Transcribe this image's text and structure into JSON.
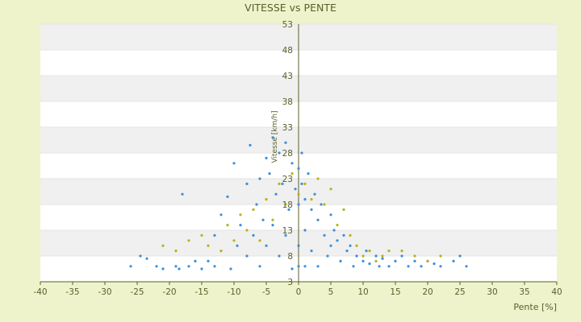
{
  "chart_data": {
    "type": "scatter",
    "title": "VITESSE vs PENTE",
    "xlabel": "Pente [%]",
    "ylabel": "Vitesse [km/h]",
    "xlim": [
      -40,
      40
    ],
    "ylim": [
      3,
      53
    ],
    "x_ticks": [
      -40,
      -35,
      -30,
      -25,
      -20,
      -15,
      -10,
      -5,
      0,
      5,
      10,
      15,
      20,
      25,
      30,
      35,
      40
    ],
    "y_ticks": [
      3,
      8,
      13,
      18,
      23,
      28,
      33,
      38,
      43,
      48,
      53
    ],
    "grid": "alternating horizontal bands",
    "colors": {
      "background": "#eef3cc",
      "band_light": "#ffffff",
      "band_dark": "#f0f0f0",
      "series_blue": "#3d8fd6",
      "series_yellow": "#b7b21a",
      "axis": "#5b5f2a",
      "text": "#5b5f2a"
    },
    "series": [
      {
        "color": "#3d8fd6",
        "points": [
          [
            -26,
            6
          ],
          [
            -23.5,
            7.5
          ],
          [
            -24.5,
            8
          ],
          [
            -22,
            6
          ],
          [
            -21,
            5.5
          ],
          [
            -19,
            6
          ],
          [
            -18.5,
            5.5
          ],
          [
            -18,
            20
          ],
          [
            -17,
            6
          ],
          [
            -16,
            7
          ],
          [
            -15,
            5.5
          ],
          [
            -14,
            7
          ],
          [
            -13,
            6
          ],
          [
            -13,
            12
          ],
          [
            -12,
            16
          ],
          [
            -11,
            19.5
          ],
          [
            -10.5,
            5.5
          ],
          [
            -10,
            26
          ],
          [
            -9.5,
            10
          ],
          [
            -9,
            14
          ],
          [
            -8,
            22
          ],
          [
            -8,
            8
          ],
          [
            -7.5,
            29.5
          ],
          [
            -7,
            12
          ],
          [
            -6.5,
            18
          ],
          [
            -6,
            23
          ],
          [
            -6,
            6
          ],
          [
            -5.5,
            15
          ],
          [
            -5,
            27
          ],
          [
            -5,
            10
          ],
          [
            -4.5,
            24
          ],
          [
            -4,
            31
          ],
          [
            -4,
            14
          ],
          [
            -3.5,
            20
          ],
          [
            -3,
            28
          ],
          [
            -3,
            8
          ],
          [
            -2.5,
            22
          ],
          [
            -2,
            30
          ],
          [
            -2,
            12
          ],
          [
            -1.5,
            17
          ],
          [
            -1,
            26
          ],
          [
            -1,
            5.5
          ],
          [
            -0.5,
            21
          ],
          [
            0,
            25
          ],
          [
            0,
            18
          ],
          [
            0,
            10
          ],
          [
            0,
            6
          ],
          [
            0.5,
            28
          ],
          [
            0.5,
            22
          ],
          [
            1,
            19
          ],
          [
            1,
            13
          ],
          [
            1,
            6
          ],
          [
            1.5,
            24
          ],
          [
            2,
            17
          ],
          [
            2,
            9
          ],
          [
            2.5,
            20
          ],
          [
            3,
            15
          ],
          [
            3,
            6
          ],
          [
            3.5,
            18
          ],
          [
            4,
            12
          ],
          [
            4.5,
            8
          ],
          [
            5,
            16
          ],
          [
            5,
            10
          ],
          [
            5.5,
            13
          ],
          [
            6,
            11
          ],
          [
            6.5,
            7
          ],
          [
            7,
            12
          ],
          [
            7.5,
            9
          ],
          [
            8,
            10
          ],
          [
            8.5,
            6
          ],
          [
            9,
            8
          ],
          [
            10,
            7
          ],
          [
            10.5,
            9
          ],
          [
            11,
            6.5
          ],
          [
            12,
            8
          ],
          [
            12.5,
            6
          ],
          [
            13,
            7.5
          ],
          [
            14,
            6
          ],
          [
            15,
            7
          ],
          [
            16,
            8
          ],
          [
            17,
            6
          ],
          [
            18,
            7
          ],
          [
            19,
            6
          ],
          [
            20,
            7
          ],
          [
            21,
            6.5
          ],
          [
            22,
            6
          ],
          [
            24,
            7
          ],
          [
            25,
            8
          ],
          [
            26,
            6
          ]
        ]
      },
      {
        "color": "#b7b21a",
        "points": [
          [
            -21,
            10
          ],
          [
            -19,
            9
          ],
          [
            -17,
            11
          ],
          [
            -15,
            12
          ],
          [
            -14,
            10
          ],
          [
            -12,
            9
          ],
          [
            -11,
            14
          ],
          [
            -10,
            11
          ],
          [
            -9,
            16
          ],
          [
            -8,
            13
          ],
          [
            -7,
            17
          ],
          [
            -6,
            11
          ],
          [
            -5,
            19
          ],
          [
            -4,
            15
          ],
          [
            -3,
            22
          ],
          [
            -2,
            18
          ],
          [
            -1,
            24
          ],
          [
            0,
            20
          ],
          [
            1,
            22
          ],
          [
            2,
            19
          ],
          [
            3,
            23
          ],
          [
            4,
            18
          ],
          [
            5,
            21
          ],
          [
            6,
            14
          ],
          [
            7,
            17
          ],
          [
            8,
            12
          ],
          [
            9,
            10
          ],
          [
            10,
            8
          ],
          [
            11,
            9
          ],
          [
            12,
            7
          ],
          [
            13,
            8
          ],
          [
            14,
            9
          ],
          [
            16,
            9
          ],
          [
            18,
            8
          ],
          [
            20,
            7
          ],
          [
            22,
            8
          ]
        ]
      }
    ]
  }
}
